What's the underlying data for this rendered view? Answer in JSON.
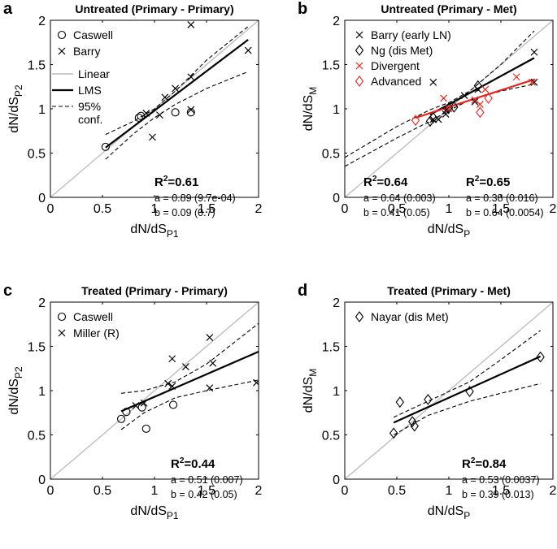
{
  "panels": [
    {
      "letter": "a",
      "title": "Untreated (Primary - Primary)",
      "xlabel": "dN/dS",
      "xlabel_sub": "P1",
      "ylabel": "dN/dS",
      "ylabel_sub": "P2",
      "xlim": [
        0,
        2
      ],
      "ylim": [
        0,
        2
      ],
      "xticks": [
        "0",
        "0.5",
        "1",
        "1.5",
        "2"
      ],
      "yticks": [
        "0",
        "0.5",
        "1",
        "1.5",
        "2"
      ],
      "series": [
        {
          "name": "Caswell",
          "marker": "circle",
          "color": "#000000",
          "points": [
            [
              0.53,
              0.57
            ],
            [
              0.85,
              0.9
            ],
            [
              0.87,
              0.92
            ],
            [
              1.2,
              0.96
            ],
            [
              1.35,
              0.96
            ]
          ]
        },
        {
          "name": "Barry",
          "marker": "x",
          "color": "#000000",
          "points": [
            [
              1.35,
              1.95
            ],
            [
              1.9,
              1.66
            ],
            [
              1.35,
              1.36
            ],
            [
              1.2,
              1.23
            ],
            [
              1.1,
              1.13
            ],
            [
              0.92,
              0.95
            ],
            [
              1.05,
              0.93
            ],
            [
              1.35,
              0.99
            ],
            [
              0.98,
              0.68
            ]
          ]
        }
      ],
      "fits": [
        {
          "kind": "LMS",
          "color": "#000000",
          "a": 0.89,
          "b": 0.09,
          "x0": 0.53,
          "x1": 1.9,
          "ci_upper": [
            [
              0.53,
              0.71
            ],
            [
              0.8,
              0.86
            ],
            [
              1.0,
              1.0
            ],
            [
              1.2,
              1.2
            ],
            [
              1.5,
              1.55
            ],
            [
              1.9,
              1.93
            ]
          ],
          "ci_lower": [
            [
              0.53,
              0.43
            ],
            [
              0.8,
              0.72
            ],
            [
              1.0,
              0.9
            ],
            [
              1.2,
              1.05
            ],
            [
              1.5,
              1.23
            ],
            [
              1.9,
              1.42
            ]
          ]
        }
      ],
      "show_linear_legend": true,
      "legend_lines": [
        {
          "label": "Linear",
          "style": "linear"
        },
        {
          "label": "LMS",
          "style": "lms"
        },
        {
          "label": "95%",
          "label2": "conf.",
          "style": "conf"
        }
      ],
      "stats": [
        {
          "color": "#000000",
          "r2": "=0.61",
          "a_text": "a = 0.89 (9.7e-04)",
          "b_text": "b = 0.09 (0.7)"
        }
      ]
    },
    {
      "letter": "b",
      "title": "Untreated (Primary - Met)",
      "xlabel": "dN/dS",
      "xlabel_sub": "P",
      "ylabel": "dN/dS",
      "ylabel_sub": "M",
      "xlim": [
        0,
        2
      ],
      "ylim": [
        0,
        2
      ],
      "xticks": [
        "0",
        "0.5",
        "1",
        "1.5",
        "2"
      ],
      "yticks": [
        "0",
        "0.5",
        "1",
        "1.5",
        "2"
      ],
      "series": [
        {
          "name": "Barry (early LN)",
          "marker": "x",
          "color": "#000000",
          "points": [
            [
              1.82,
              1.64
            ],
            [
              0.85,
              1.3
            ],
            [
              1.28,
              1.22
            ],
            [
              1.15,
              1.15
            ],
            [
              0.97,
              0.98
            ],
            [
              1.25,
              1.08
            ],
            [
              0.97,
              0.94
            ],
            [
              0.9,
              0.88
            ],
            [
              0.85,
              0.88
            ],
            [
              1.82,
              1.3
            ]
          ]
        },
        {
          "name": "Ng (dis Met)",
          "marker": "diamond",
          "color": "#000000",
          "points": [
            [
              1.28,
              1.26
            ],
            [
              1.0,
              1.01
            ],
            [
              0.82,
              0.86
            ],
            [
              0.85,
              0.9
            ],
            [
              1.05,
              1.02
            ]
          ]
        },
        {
          "name": "Divergent",
          "marker": "x",
          "color": "#e8231d",
          "points": [
            [
              0.95,
              1.12
            ],
            [
              1.25,
              1.1
            ],
            [
              1.35,
              1.22
            ],
            [
              1.65,
              1.36
            ],
            [
              1.8,
              1.3
            ],
            [
              1.0,
              1.0
            ],
            [
              1.3,
              1.05
            ]
          ]
        },
        {
          "name": "Advanced",
          "marker": "diamond",
          "color": "#e8231d",
          "points": [
            [
              0.68,
              0.87
            ],
            [
              1.3,
              0.96
            ],
            [
              1.38,
              1.12
            ]
          ]
        }
      ],
      "fits": [
        {
          "kind": "LMS",
          "color": "#000000",
          "a": 0.64,
          "b": 0.41,
          "x0": 0.82,
          "x1": 1.82,
          "ci_upper": [
            [
              0.0,
              0.45
            ],
            [
              0.5,
              0.8
            ],
            [
              0.82,
              0.99
            ],
            [
              1.0,
              1.07
            ],
            [
              1.2,
              1.2
            ],
            [
              1.5,
              1.5
            ],
            [
              1.82,
              1.88
            ]
          ],
          "ci_lower": [
            [
              0.0,
              0.35
            ],
            [
              0.5,
              0.67
            ],
            [
              0.82,
              0.86
            ],
            [
              1.0,
              0.98
            ],
            [
              1.2,
              1.1
            ],
            [
              1.5,
              1.2
            ],
            [
              1.82,
              1.28
            ]
          ]
        },
        {
          "kind": "LMS",
          "color": "#e8231d",
          "a": 0.38,
          "b": 0.64,
          "x0": 0.68,
          "x1": 1.82
        }
      ],
      "show_linear_legend": false,
      "legend_lines": [],
      "stats": [
        {
          "color": "#000000",
          "r2": "=0.64",
          "a_text": "a = 0.64 (0.003)",
          "b_text": "b = 0.41 (0.05)"
        },
        {
          "color": "#e8231d",
          "r2": "=0.65",
          "a_text": "a = 0.38 (0.016)",
          "b_text": "b = 0.64 (0.0054)"
        }
      ]
    },
    {
      "letter": "c",
      "title": "Treated (Primary - Primary)",
      "xlabel": "dN/dS",
      "xlabel_sub": "P1",
      "ylabel": "dN/dS",
      "ylabel_sub": "P2",
      "xlim": [
        0,
        2
      ],
      "ylim": [
        0,
        2
      ],
      "xticks": [
        "0",
        "0.5",
        "1",
        "1.5",
        "2"
      ],
      "yticks": [
        "0",
        "0.5",
        "1",
        "1.5",
        "2"
      ],
      "series": [
        {
          "name": "Caswell",
          "marker": "circle",
          "color": "#000000",
          "points": [
            [
              0.68,
              0.68
            ],
            [
              0.73,
              0.76
            ],
            [
              0.88,
              0.81
            ],
            [
              0.92,
              0.57
            ],
            [
              1.18,
              0.84
            ]
          ]
        },
        {
          "name": "Miller (R)",
          "marker": "x",
          "color": "#000000",
          "points": [
            [
              1.53,
              1.6
            ],
            [
              1.17,
              1.36
            ],
            [
              1.3,
              1.27
            ],
            [
              1.13,
              1.08
            ],
            [
              1.17,
              1.05
            ],
            [
              1.56,
              1.31
            ],
            [
              1.53,
              1.03
            ],
            [
              1.98,
              1.09
            ],
            [
              0.9,
              0.86
            ],
            [
              0.82,
              0.83
            ]
          ]
        }
      ],
      "fits": [
        {
          "kind": "LMS",
          "color": "#000000",
          "a": 0.51,
          "b": 0.42,
          "x0": 0.68,
          "x1": 2.0,
          "ci_upper": [
            [
              0.68,
              0.97
            ],
            [
              0.9,
              1.0
            ],
            [
              1.2,
              1.1
            ],
            [
              1.5,
              1.3
            ],
            [
              2.0,
              1.76
            ]
          ],
          "ci_lower": [
            [
              0.68,
              0.56
            ],
            [
              0.9,
              0.75
            ],
            [
              1.2,
              0.92
            ],
            [
              1.5,
              1.0
            ],
            [
              2.0,
              1.12
            ]
          ]
        }
      ],
      "show_linear_legend": false,
      "legend_lines": [],
      "stats": [
        {
          "color": "#000000",
          "r2": "=0.44",
          "a_text": "a = 0.51 (0.007)",
          "b_text": "b = 0.42 (0.05)"
        }
      ]
    },
    {
      "letter": "d",
      "title": "Treated (Primary - Met)",
      "xlabel": "dN/dS",
      "xlabel_sub": "P",
      "ylabel": "dN/dS",
      "ylabel_sub": "M",
      "xlim": [
        0,
        2
      ],
      "ylim": [
        0,
        2
      ],
      "xticks": [
        "0",
        "0.5",
        "1",
        "1.5",
        "2"
      ],
      "yticks": [
        "0",
        "0.5",
        "1",
        "1.5",
        "2"
      ],
      "series": [
        {
          "name": "Nayar (dis Met)",
          "marker": "diamond",
          "color": "#000000",
          "points": [
            [
              1.88,
              1.38
            ],
            [
              1.2,
              0.99
            ],
            [
              0.8,
              0.9
            ],
            [
              0.53,
              0.87
            ],
            [
              0.65,
              0.65
            ],
            [
              0.67,
              0.6
            ],
            [
              0.47,
              0.52
            ]
          ]
        }
      ],
      "fits": [
        {
          "kind": "LMS",
          "color": "#000000",
          "a": 0.53,
          "b": 0.39,
          "x0": 0.47,
          "x1": 1.88,
          "ci_upper": [
            [
              0.47,
              0.7
            ],
            [
              0.8,
              0.88
            ],
            [
              1.2,
              1.1
            ],
            [
              1.5,
              1.35
            ],
            [
              1.88,
              1.68
            ]
          ],
          "ci_lower": [
            [
              0.47,
              0.5
            ],
            [
              0.8,
              0.72
            ],
            [
              1.2,
              0.88
            ],
            [
              1.5,
              0.97
            ],
            [
              1.88,
              1.08
            ]
          ]
        }
      ],
      "show_linear_legend": false,
      "legend_lines": [],
      "stats": [
        {
          "color": "#000000",
          "r2": "=0.84",
          "a_text": "a = 0.53 (0.0037)",
          "b_text": "b = 0.39 (0.013)"
        }
      ]
    }
  ],
  "stats_r2_prefix": "R",
  "stats_r2_sup": "2",
  "colors": {
    "identity": "#bbbbbb",
    "axis": "#000000",
    "red": "#e8231d"
  }
}
